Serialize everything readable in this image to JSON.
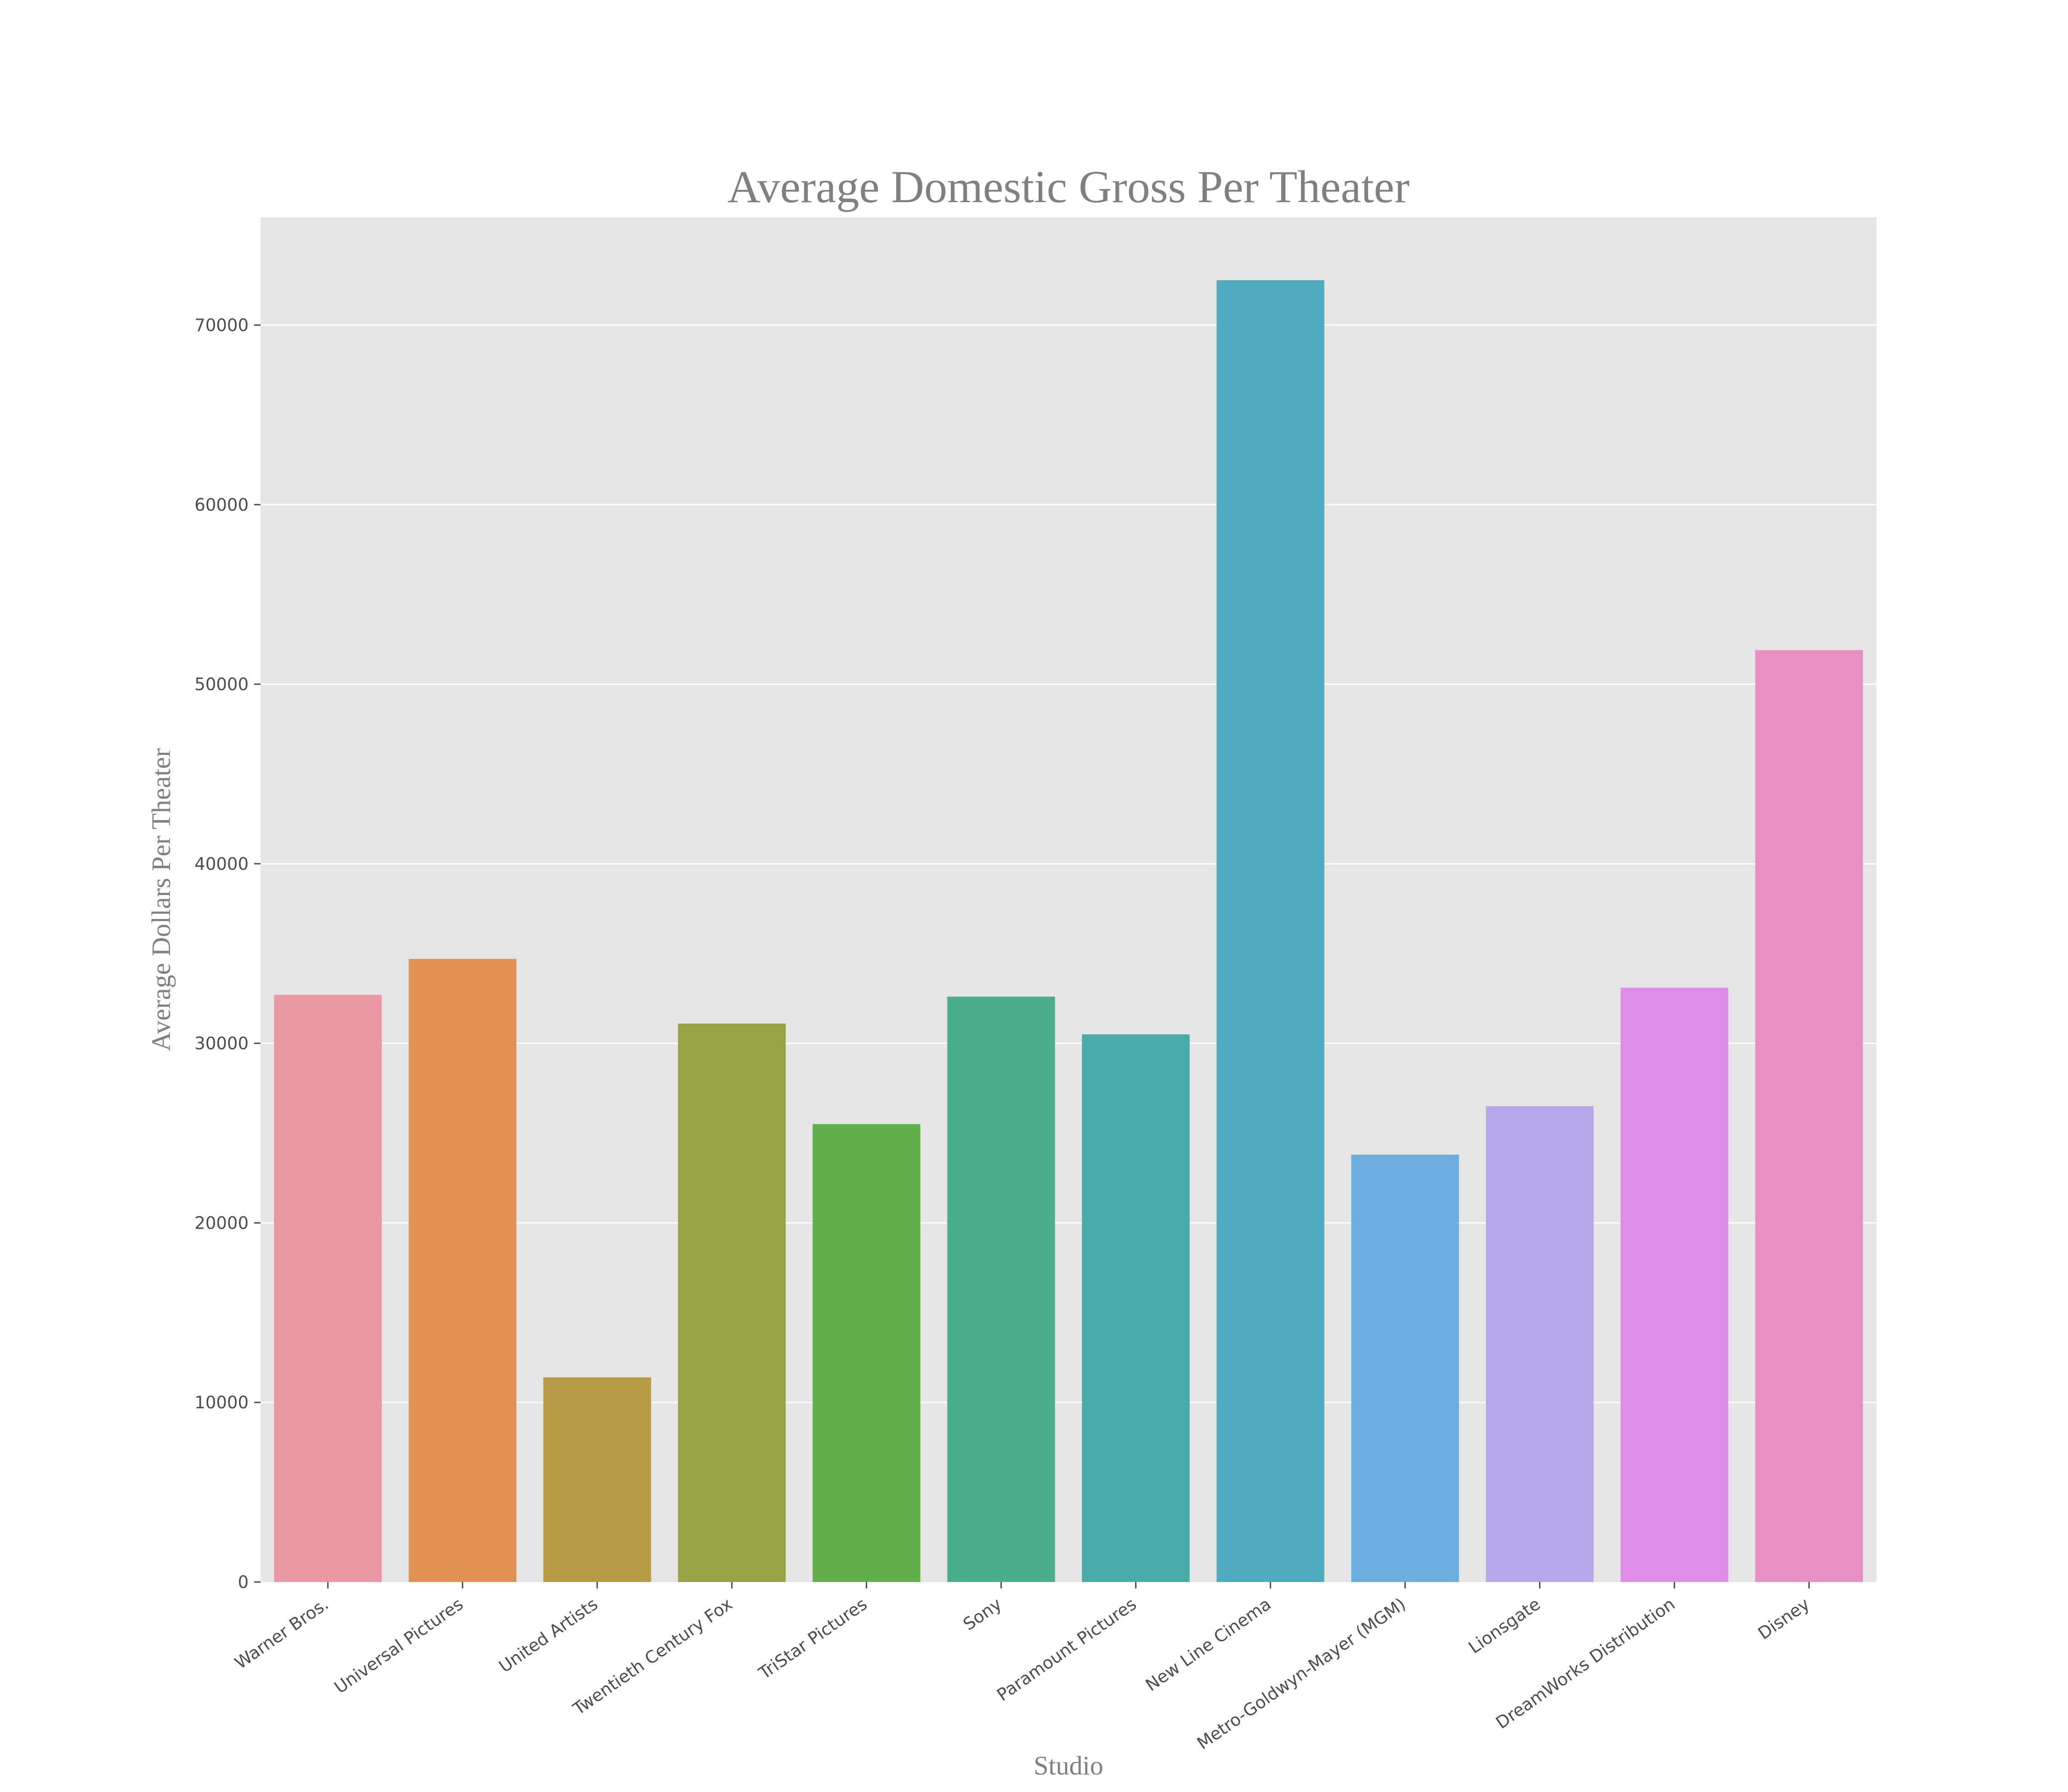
{
  "chart_data": {
    "type": "bar",
    "title": "Average Domestic Gross Per Theater",
    "xlabel": "Studio",
    "ylabel": "Average Dollars Per Theater",
    "categories": [
      "Warner Bros.",
      "Universal Pictures",
      "United Artists",
      "Twentieth Century Fox",
      "TriStar Pictures",
      "Sony",
      "Paramount Pictures",
      "New Line Cinema",
      "Metro-Goldwyn-Mayer (MGM)",
      "Lionsgate",
      "DreamWorks Distribution",
      "Disney"
    ],
    "values": [
      32700,
      34700,
      11400,
      31100,
      25500,
      32600,
      30500,
      72500,
      23800,
      26500,
      33100,
      51900
    ],
    "colors": [
      "#ea96a3",
      "#e19153",
      "#b89a49",
      "#99a244",
      "#62ae4b",
      "#4bad89",
      "#4bab a6",
      "#50aabe",
      "#6badde",
      "#b6a7eb",
      "#df8ee7",
      "#e890c3"
    ],
    "ylim": [
      0,
      76000
    ],
    "yticks": [
      0,
      10000,
      20000,
      30000,
      40000,
      50000,
      60000,
      70000
    ],
    "grid": true,
    "legend": "none",
    "plot_background": "#e5e5e5",
    "grid_color": "#ffffff"
  }
}
